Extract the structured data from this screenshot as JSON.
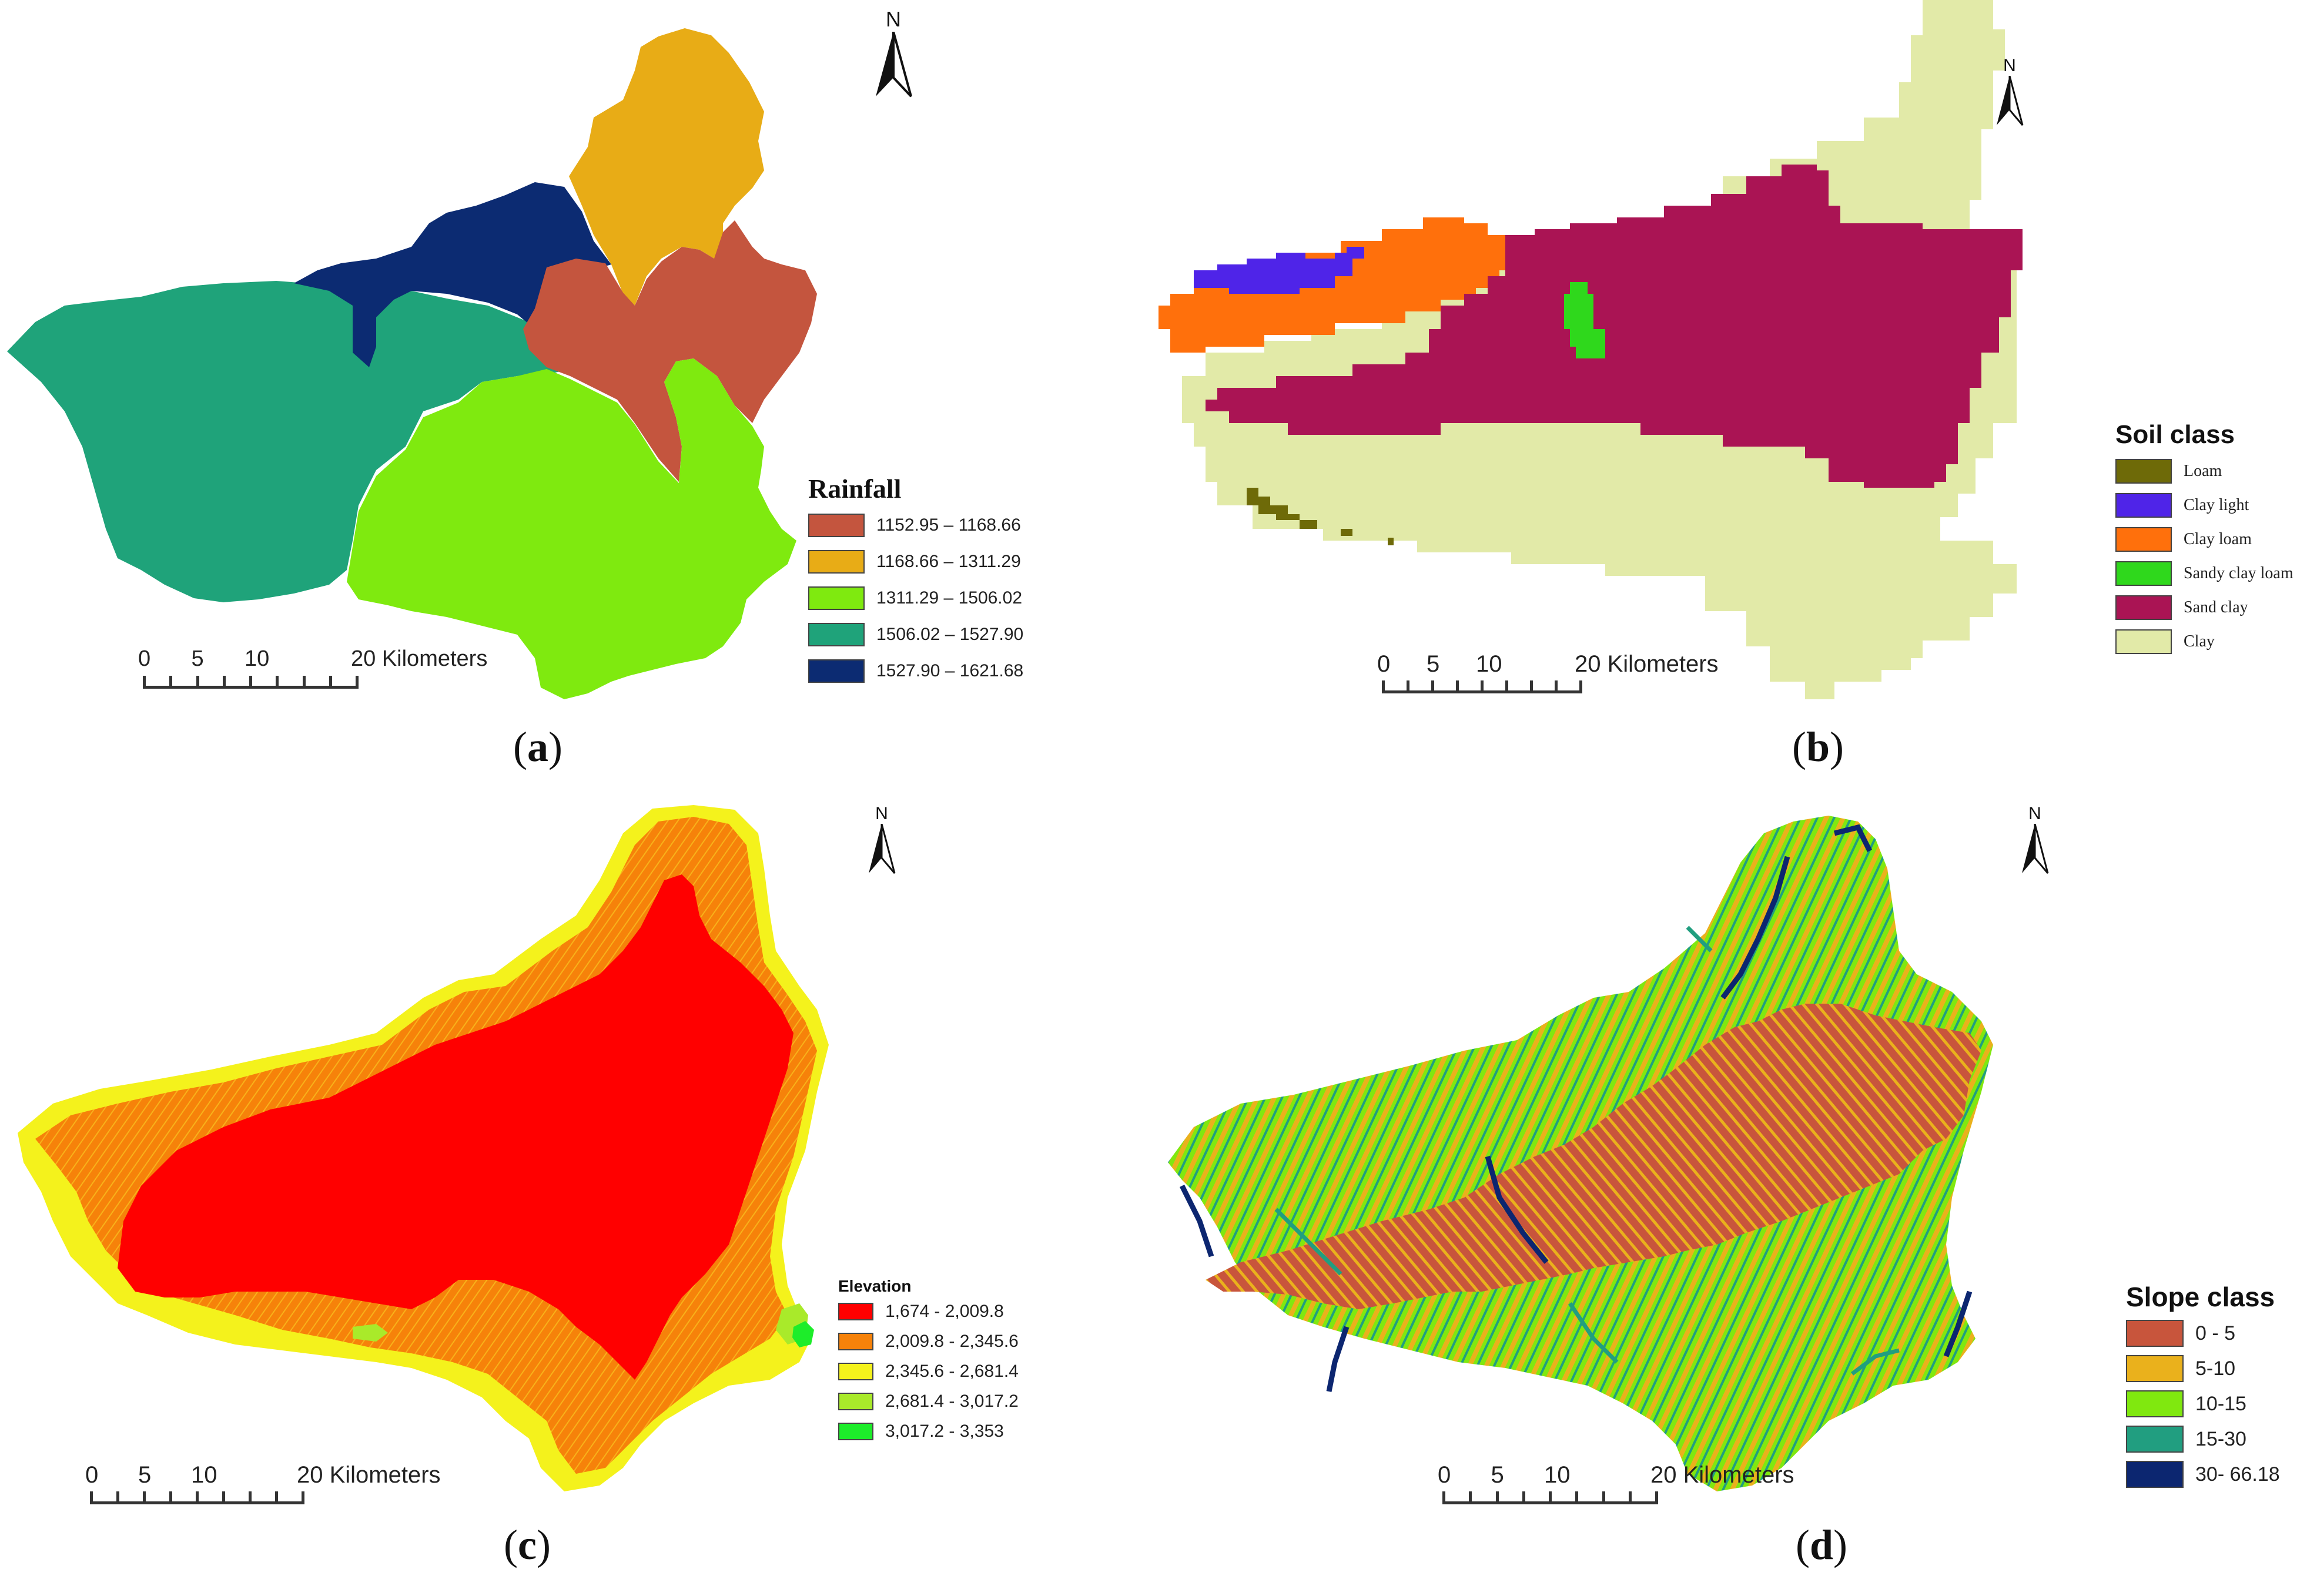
{
  "panels": {
    "a": {
      "caption": "a",
      "legend_title": "Rainfall",
      "classes": [
        {
          "label": "1152.95 – 1168.66",
          "color": "#c4553e"
        },
        {
          "label": "1168.66 – 1311.29",
          "color": "#e8ac16"
        },
        {
          "label": "1311.29 – 1506.02",
          "color": "#7fea0f"
        },
        {
          "label": "1506.02 – 1527.90",
          "color": "#1fa37a"
        },
        {
          "label": "1527.90 – 1621.68",
          "color": "#0c2b72"
        }
      ]
    },
    "b": {
      "caption": "b",
      "legend_title": "Soil class",
      "classes": [
        {
          "label": "Loam",
          "color": "#6e6a08"
        },
        {
          "label": "Clay light",
          "color": "#4f24e8"
        },
        {
          "label": "Clay loam",
          "color": "#ff700c"
        },
        {
          "label": "Sandy clay loam",
          "color": "#2fd81c"
        },
        {
          "label": "Sand clay",
          "color": "#aa1454"
        },
        {
          "label": "Clay",
          "color": "#e2eaa8"
        }
      ]
    },
    "c": {
      "caption": "c",
      "legend_title": "Elevation",
      "classes": [
        {
          "label": "1,674 - 2,009.8",
          "color": "#ff0000"
        },
        {
          "label": "2,009.8 - 2,345.6",
          "color": "#f6820a"
        },
        {
          "label": "2,345.6 - 2,681.4",
          "color": "#f4f21c"
        },
        {
          "label": "2,681.4 - 3,017.2",
          "color": "#a9ea2a"
        },
        {
          "label": "3,017.2 - 3,353",
          "color": "#1ded2a"
        }
      ]
    },
    "d": {
      "caption": "d",
      "legend_title": "Slope class",
      "classes": [
        {
          "label": "0 - 5",
          "color": "#c8553c"
        },
        {
          "label": "5-10",
          "color": "#eab11c"
        },
        {
          "label": "10-15",
          "color": "#80e80f"
        },
        {
          "label": "15-30",
          "color": "#219e80"
        },
        {
          "label": "30- 66.18",
          "color": "#0c2670"
        }
      ]
    }
  },
  "north_label": "N",
  "scale": {
    "ticks": [
      "0",
      "5",
      "10",
      "20 Kilometers"
    ]
  }
}
